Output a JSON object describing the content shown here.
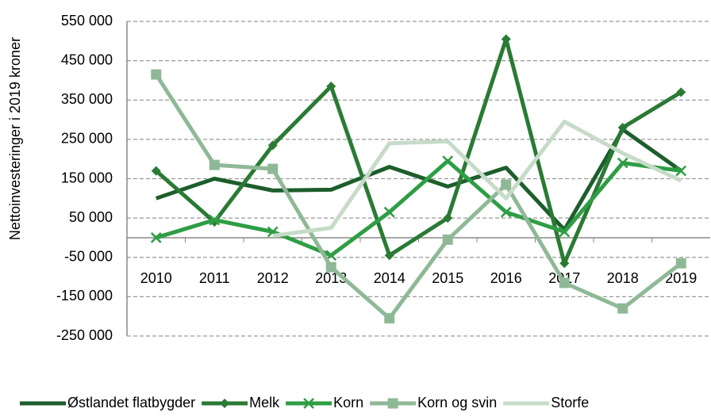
{
  "chart_data": {
    "type": "line",
    "y_axis_label": "Nettoinvesteringer i 2019 kroner",
    "categories": [
      "2010",
      "2011",
      "2012",
      "2013",
      "2014",
      "2015",
      "2016",
      "2017",
      "2018",
      "2019"
    ],
    "series": [
      {
        "name": "Østlandet flatbygder",
        "color": "#1d5e2c",
        "values": [
          100000,
          150000,
          120000,
          122000,
          180000,
          130000,
          178000,
          20000,
          275000,
          170000
        ]
      },
      {
        "name": "Melk",
        "color": "#2a7a34",
        "marker": "diamond",
        "values": [
          170000,
          40000,
          235000,
          385000,
          -45000,
          50000,
          505000,
          -65000,
          280000,
          370000
        ]
      },
      {
        "name": "Korn",
        "color": "#2e9e44",
        "marker": "x",
        "values": [
          0,
          45000,
          15000,
          -45000,
          65000,
          195000,
          65000,
          15000,
          190000,
          170000
        ]
      },
      {
        "name": "Korn og svin",
        "color": "#8fb996",
        "marker": "square",
        "values": [
          415000,
          185000,
          175000,
          -75000,
          -205000,
          -5000,
          135000,
          -115000,
          -180000,
          -65000
        ]
      },
      {
        "name": "Storfe",
        "color": "#c6dbc8",
        "values": [
          null,
          null,
          5000,
          25000,
          240000,
          245000,
          100000,
          295000,
          215000,
          145000
        ]
      }
    ],
    "ylim": [
      -250000,
      550000
    ],
    "yticks": [
      {
        "value": -250000,
        "label": "-250 000"
      },
      {
        "value": -150000,
        "label": "-150 000"
      },
      {
        "value": -50000,
        "label": "-50 000"
      },
      {
        "value": 50000,
        "label": "50 000"
      },
      {
        "value": 150000,
        "label": "150 000"
      },
      {
        "value": 250000,
        "label": "250 000"
      },
      {
        "value": 350000,
        "label": "350 000"
      },
      {
        "value": 450000,
        "label": "450 000"
      },
      {
        "value": 550000,
        "label": "550 000"
      }
    ],
    "grid": true,
    "legend": "bottom"
  }
}
